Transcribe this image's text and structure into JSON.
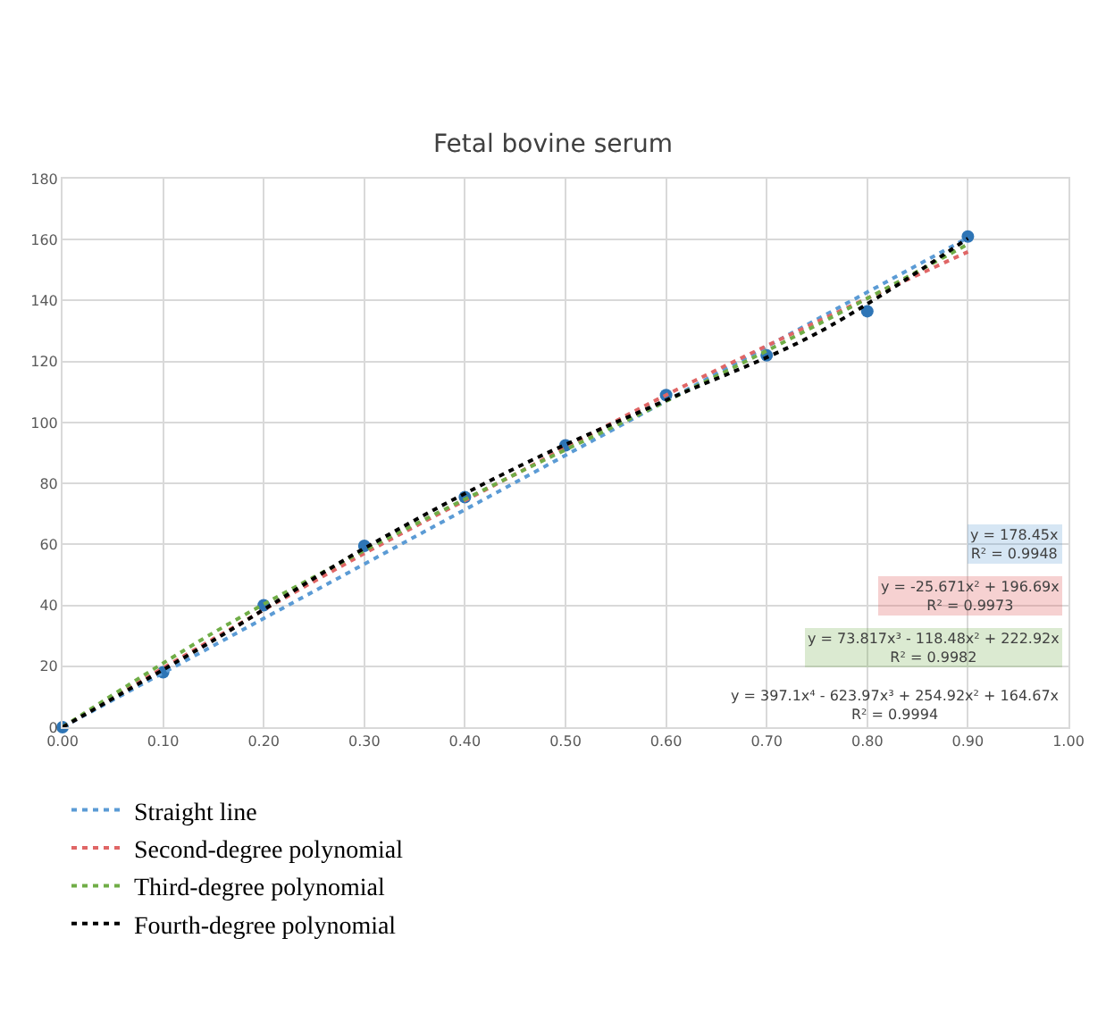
{
  "chart_data": {
    "type": "scatter",
    "title": "Fetal bovine serum",
    "xlim": [
      0,
      1
    ],
    "xticks": [
      {
        "value": 0,
        "label": "0.00"
      },
      {
        "value": 0.1,
        "label": "0.10"
      },
      {
        "value": 0.2,
        "label": "0.20"
      },
      {
        "value": 0.3,
        "label": "0.30"
      },
      {
        "value": 0.4,
        "label": "0.40"
      },
      {
        "value": 0.5,
        "label": "0.50"
      },
      {
        "value": 0.6,
        "label": "0.60"
      },
      {
        "value": 0.7,
        "label": "0.70"
      },
      {
        "value": 0.8,
        "label": "0.80"
      },
      {
        "value": 0.9,
        "label": "0.90"
      },
      {
        "value": 1,
        "label": "1.00"
      }
    ],
    "ylim": [
      0,
      180
    ],
    "yticks": [
      0,
      20,
      40,
      60,
      80,
      100,
      120,
      140,
      160,
      180
    ],
    "grid": true,
    "legend": "bottom",
    "series": [
      {
        "color": "#2e75b6",
        "marker": "circle",
        "x": [
          0,
          0.1,
          0.2,
          0.3,
          0.4,
          0.5,
          0.6,
          0.7,
          0.8,
          0.9
        ],
        "values": [
          0,
          18,
          40,
          59.5,
          75.5,
          92.5,
          109,
          122,
          136.5,
          161
        ]
      },
      {
        "type": "line",
        "name": "Straight line",
        "color": "#5b9bd5",
        "line_style": "dotted",
        "marker": "none",
        "x": [
          0,
          0.9
        ],
        "values": [
          0,
          160.6
        ]
      },
      {
        "type": "line",
        "name": "Second-degree polynomial",
        "color": "#e06666",
        "line_style": "dotted",
        "marker": "none",
        "x": [
          0,
          0.15,
          0.3,
          0.45,
          0.6,
          0.75,
          0.9
        ],
        "values": [
          0,
          29,
          57,
          83,
          109,
          133,
          156
        ]
      },
      {
        "type": "line",
        "name": "Third-degree polynomial",
        "color": "#70ad47",
        "line_style": "dotted",
        "marker": "none",
        "x": [
          0,
          0.15,
          0.3,
          0.45,
          0.6,
          0.75,
          0.9
        ],
        "values": [
          0,
          31,
          58,
          83,
          107,
          132,
          158.5
        ]
      },
      {
        "type": "line",
        "name": "Fourth-degree polynomial",
        "color": "#000000",
        "line_style": "dotted",
        "marker": "none",
        "x": [
          0,
          0.15,
          0.3,
          0.45,
          0.6,
          0.75,
          0.9
        ],
        "values": [
          0,
          28.5,
          58.7,
          85,
          107.3,
          129.3,
          160.4
        ]
      }
    ],
    "annotations": [
      "y = 178.45x\nR² = 0.9948",
      "y = -25.671x² + 196.69x\nR² = 0.9973",
      "y = 73.817x³ - 118.48x² + 222.92x\nR² = 0.9982",
      "y = 397.1x⁴ - 623.97x³ + 254.92x² + 164.67x\nR² = 0.9994"
    ]
  }
}
